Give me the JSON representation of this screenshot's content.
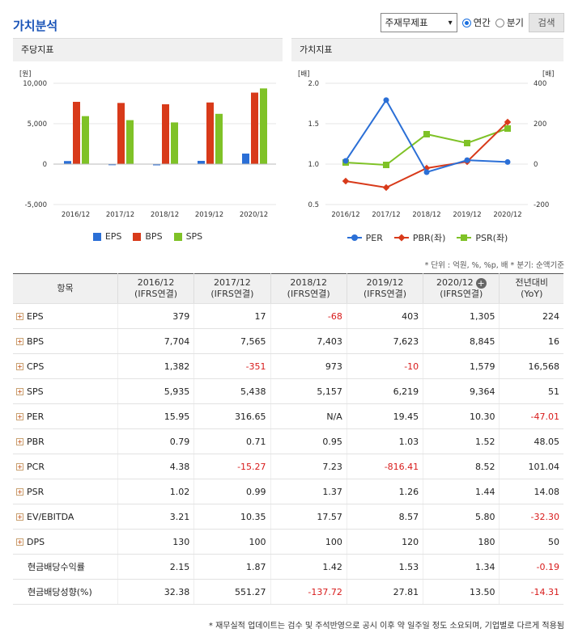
{
  "title": "가치분석",
  "toolbar": {
    "select_value": "주재무제표",
    "radio_annual": "연간",
    "radio_quarter": "분기",
    "search_label": "검색"
  },
  "colors": {
    "eps": "#2b6fd6",
    "bps": "#d83a1a",
    "sps": "#7fc227",
    "per": "#2b6fd6",
    "pbr": "#d83a1a",
    "psr": "#7fc227"
  },
  "chart_data": [
    {
      "type": "bar",
      "title": "주당지표",
      "ylabel": "[원]",
      "ylim": [
        -5000,
        10000
      ],
      "yticks": [
        "10,000",
        "5,000",
        "0",
        "-5,000"
      ],
      "categories": [
        "2016/12",
        "2017/12",
        "2018/12",
        "2019/12",
        "2020/12"
      ],
      "series": [
        {
          "name": "EPS",
          "values": [
            379,
            17,
            -68,
            403,
            1305
          ]
        },
        {
          "name": "BPS",
          "values": [
            7704,
            7565,
            7403,
            7623,
            8845
          ]
        },
        {
          "name": "SPS",
          "values": [
            5935,
            5438,
            5157,
            6219,
            9364
          ]
        }
      ],
      "legend_placement": "bottom"
    },
    {
      "type": "line",
      "title": "가치지표",
      "ylabel_left": "[배]",
      "ylabel_right": "[배]",
      "ylim_left": [
        0.5,
        2.0
      ],
      "ylim_right": [
        -200,
        400
      ],
      "yticks_left": [
        "2.0",
        "1.5",
        "1.0",
        "0.5"
      ],
      "yticks_right": [
        "400",
        "200",
        "0",
        "-200"
      ],
      "categories": [
        "2016/12",
        "2017/12",
        "2018/12",
        "2019/12",
        "2020/12"
      ],
      "series": [
        {
          "name": "PER",
          "axis": "right",
          "values": [
            15.95,
            316.65,
            null,
            19.45,
            10.3
          ]
        },
        {
          "name": "PBR(좌)",
          "axis": "left",
          "values": [
            0.79,
            0.71,
            0.95,
            1.03,
            1.52
          ]
        },
        {
          "name": "PSR(좌)",
          "axis": "left",
          "values": [
            1.02,
            0.99,
            1.37,
            1.26,
            1.44
          ]
        }
      ],
      "legend_placement": "bottom"
    }
  ],
  "unit_note": "* 단위 : 억원, %, %p, 배    * 분기: 순액기준",
  "table": {
    "header_item": "항목",
    "columns": [
      {
        "year": "2016/12",
        "sub": "(IFRS연결)"
      },
      {
        "year": "2017/12",
        "sub": "(IFRS연결)"
      },
      {
        "year": "2018/12",
        "sub": "(IFRS연결)"
      },
      {
        "year": "2019/12",
        "sub": "(IFRS연결)"
      },
      {
        "year": "2020/12",
        "sub": "(IFRS연결)"
      }
    ],
    "yoy_label": "전년대비",
    "yoy_sub": "(YoY)",
    "rows": [
      {
        "label": "EPS",
        "expand": true,
        "values": [
          "379",
          "17",
          "-68",
          "403",
          "1,305",
          "224"
        ]
      },
      {
        "label": "BPS",
        "expand": true,
        "values": [
          "7,704",
          "7,565",
          "7,403",
          "7,623",
          "8,845",
          "16"
        ]
      },
      {
        "label": "CPS",
        "expand": true,
        "values": [
          "1,382",
          "-351",
          "973",
          "-10",
          "1,579",
          "16,568"
        ]
      },
      {
        "label": "SPS",
        "expand": true,
        "values": [
          "5,935",
          "5,438",
          "5,157",
          "6,219",
          "9,364",
          "51"
        ]
      },
      {
        "label": "PER",
        "expand": true,
        "values": [
          "15.95",
          "316.65",
          "N/A",
          "19.45",
          "10.30",
          "-47.01"
        ]
      },
      {
        "label": "PBR",
        "expand": true,
        "values": [
          "0.79",
          "0.71",
          "0.95",
          "1.03",
          "1.52",
          "48.05"
        ]
      },
      {
        "label": "PCR",
        "expand": true,
        "values": [
          "4.38",
          "-15.27",
          "7.23",
          "-816.41",
          "8.52",
          "101.04"
        ]
      },
      {
        "label": "PSR",
        "expand": true,
        "values": [
          "1.02",
          "0.99",
          "1.37",
          "1.26",
          "1.44",
          "14.08"
        ]
      },
      {
        "label": "EV/EBITDA",
        "expand": true,
        "values": [
          "3.21",
          "10.35",
          "17.57",
          "8.57",
          "5.80",
          "-32.30"
        ]
      },
      {
        "label": "DPS",
        "expand": true,
        "values": [
          "130",
          "100",
          "100",
          "120",
          "180",
          "50"
        ]
      },
      {
        "label": "현금배당수익률",
        "expand": false,
        "values": [
          "2.15",
          "1.87",
          "1.42",
          "1.53",
          "1.34",
          "-0.19"
        ]
      },
      {
        "label": "현금배당성향(%)",
        "expand": false,
        "values": [
          "32.38",
          "551.27",
          "-137.72",
          "27.81",
          "13.50",
          "-14.31"
        ]
      }
    ]
  },
  "footnote": "* 재무실적 업데이트는 검수 및 주석반영으로 공시 이후 약 일주일 정도 소요되며, 기업별로 다르게 적용됨"
}
